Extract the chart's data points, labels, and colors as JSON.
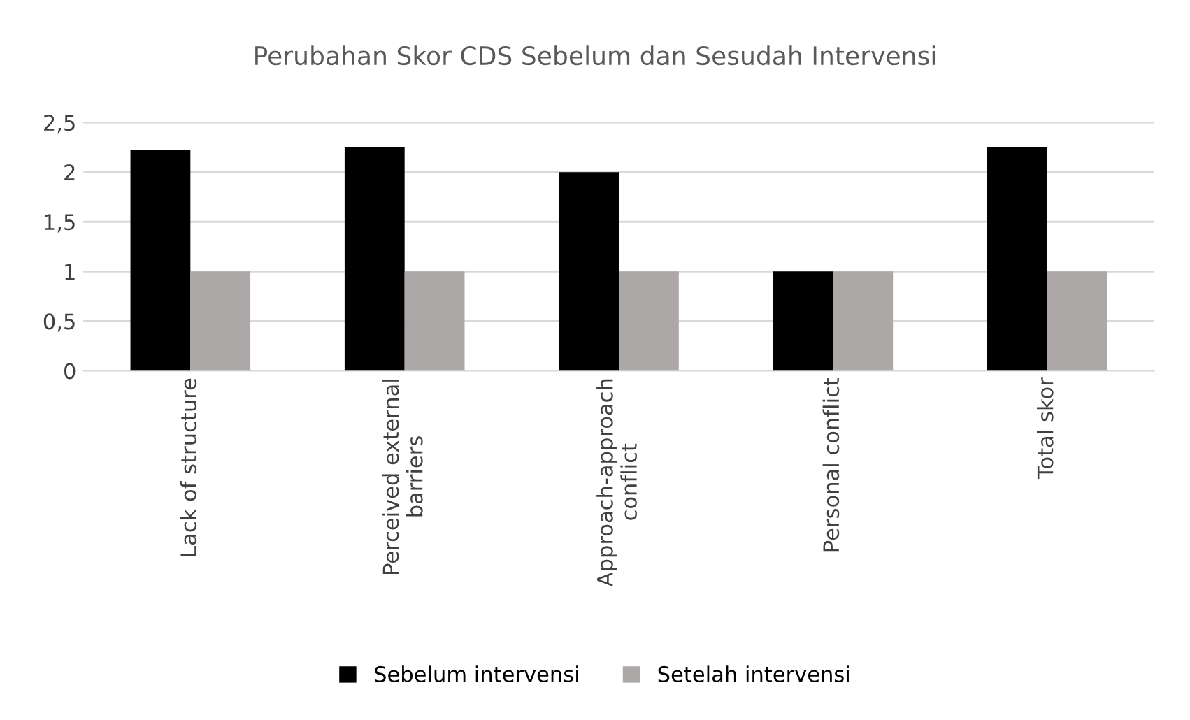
{
  "chart_data": {
    "type": "bar",
    "title": "Perubahan Skor CDS Sebelum dan Sesudah Intervensi",
    "categories": [
      "Lack of structure",
      "Perceived external\nbarriers",
      "Approach-approach\nconflict",
      "Personal conflict",
      "Total skor"
    ],
    "series": [
      {
        "name": "Sebelum intervensi",
        "color": "#000000",
        "values": [
          2.22,
          2.25,
          2,
          1,
          2.25
        ]
      },
      {
        "name": "Setelah intervensi",
        "color": "#aba8a7",
        "values": [
          1,
          1,
          1,
          1,
          1
        ]
      }
    ],
    "ylim": [
      0,
      2.5
    ],
    "yticks": [
      0,
      {
        "value": 0.5,
        "label": "0,5"
      },
      1,
      {
        "value": 1.5,
        "label": "1,5"
      },
      2,
      {
        "value": 2.5,
        "label": "2,5"
      }
    ],
    "grid": "y",
    "legend": "bottom"
  }
}
